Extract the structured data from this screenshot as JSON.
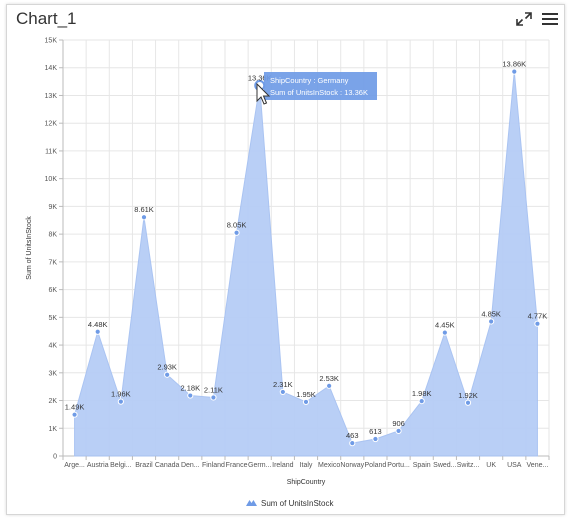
{
  "header": {
    "title": "Chart_1"
  },
  "icons": {
    "expand": "expand-icon",
    "menu": "hamburger-menu-icon"
  },
  "colors": {
    "area_fill": "#b6cdf6",
    "area_stroke": "#a6c1f2",
    "marker": "#6f9be6",
    "tooltip_bg": "#6f9be6"
  },
  "tooltip": {
    "line1": "ShipCountry : Germany",
    "line2": "Sum of UnitsInStock : 13.36K"
  },
  "chart_data": {
    "type": "area",
    "xlabel": "ShipCountry",
    "ylabel": "Sum of UnitsInStock",
    "ylim": [
      0,
      15000
    ],
    "y_ticks": [
      "0",
      "1K",
      "2K",
      "3K",
      "4K",
      "5K",
      "6K",
      "7K",
      "8K",
      "9K",
      "10K",
      "11K",
      "12K",
      "13K",
      "14K",
      "15K"
    ],
    "grid": true,
    "legend_position": "bottom",
    "categories": [
      "Arge...",
      "Austria",
      "Belgi...",
      "Brazil",
      "Canada",
      "Den...",
      "Finland",
      "France",
      "Germ...",
      "Ireland",
      "Italy",
      "Mexico",
      "Norway",
      "Poland",
      "Portu...",
      "Spain",
      "Swed...",
      "Switz...",
      "UK",
      "USA",
      "Vene..."
    ],
    "series": [
      {
        "name": "Sum of UnitsInStock",
        "values": [
          1490,
          4480,
          1960,
          8610,
          2930,
          2180,
          2110,
          8050,
          13360,
          2310,
          1950,
          2530,
          463,
          613,
          906,
          1980,
          4450,
          1920,
          4850,
          13860,
          4770
        ],
        "labels": [
          "1.49K",
          "4.48K",
          "1.96K",
          "8.61K",
          "2.93K",
          "2.18K",
          "2.11K",
          "8.05K",
          "13.36K",
          "2.31K",
          "1.95K",
          "2.53K",
          "463",
          "613",
          "906",
          "1.98K",
          "4.45K",
          "1.92K",
          "4.85K",
          "13.86K",
          "4.77K"
        ]
      }
    ],
    "highlighted_index": 8
  }
}
